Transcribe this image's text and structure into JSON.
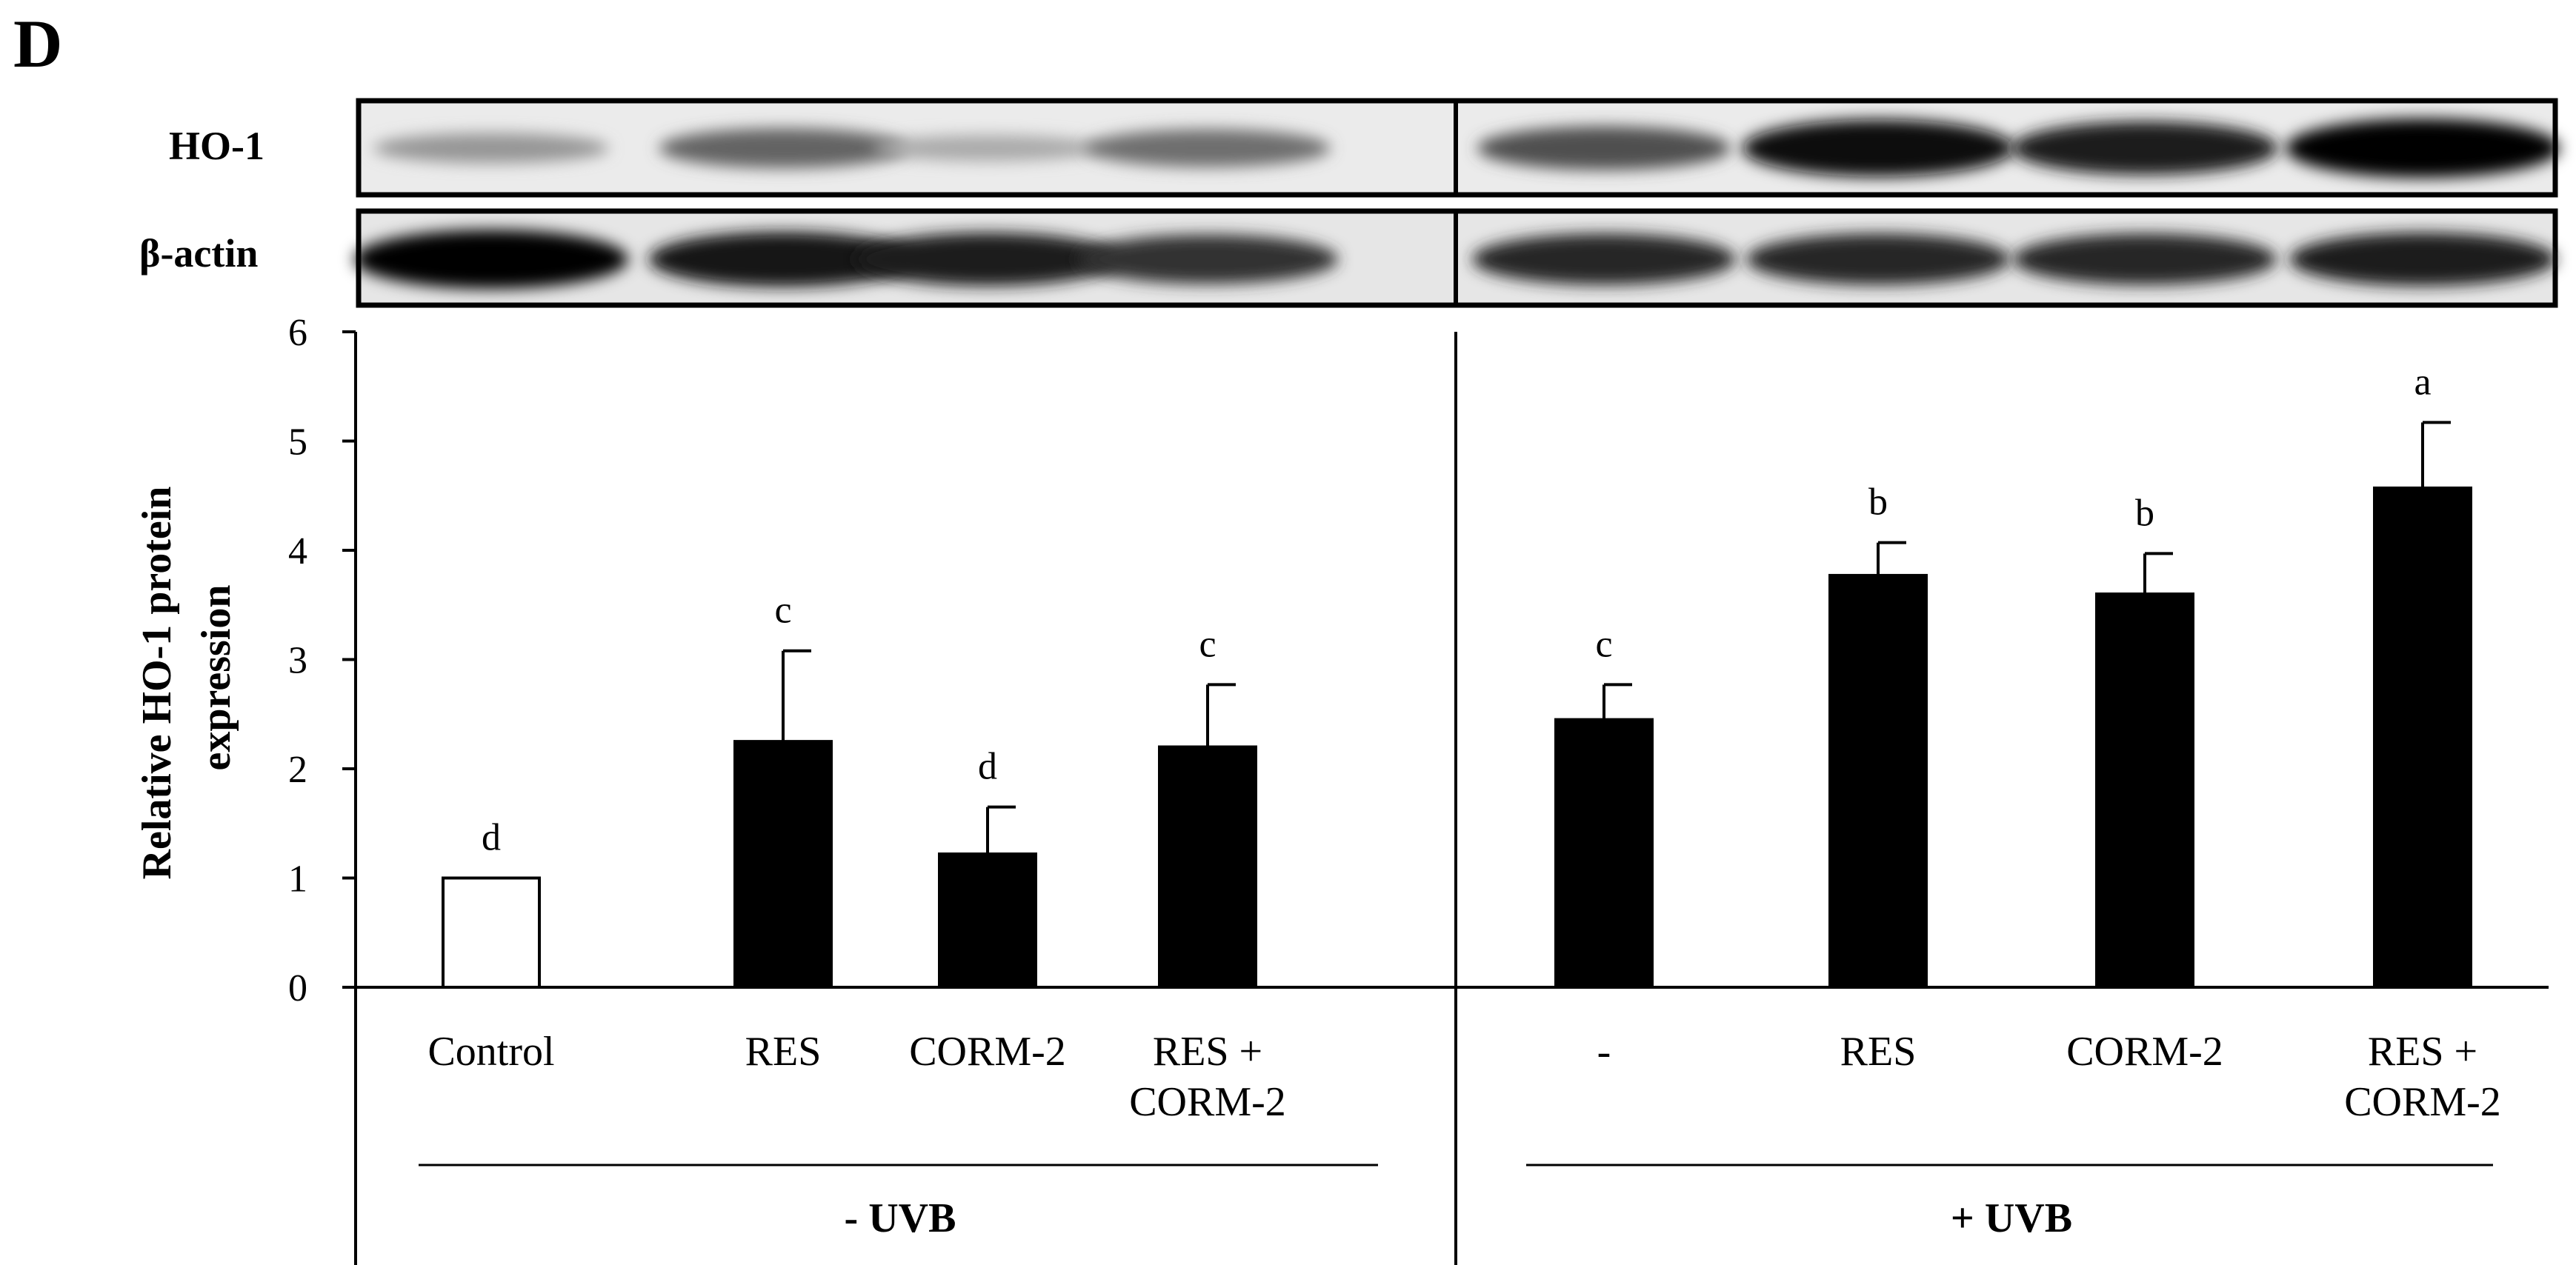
{
  "panel_label": "D",
  "blot": {
    "row_labels": [
      "HO-1",
      "β-actin"
    ],
    "ho1_intensity": [
      0.25,
      0.5,
      0.15,
      0.45,
      0.6,
      0.95,
      0.85,
      1.0
    ],
    "actin_intensity": [
      1.0,
      0.9,
      0.85,
      0.75,
      0.8,
      0.8,
      0.8,
      0.85
    ]
  },
  "chart_data": {
    "type": "bar",
    "ylabel_lines": [
      "Relative HO-1 protein",
      "expression"
    ],
    "ylim": [
      0,
      6
    ],
    "yticks": [
      "0",
      "1",
      "2",
      "3",
      "4",
      "5",
      "6"
    ],
    "categories": [
      [
        "Control"
      ],
      [
        "RES"
      ],
      [
        "CORM-2"
      ],
      [
        "RES +",
        "CORM-2"
      ],
      [
        "-"
      ],
      [
        "RES"
      ],
      [
        "CORM-2"
      ],
      [
        "RES +",
        "CORM-2"
      ]
    ],
    "values": [
      1.0,
      2.25,
      1.22,
      2.2,
      2.45,
      3.77,
      3.6,
      4.57
    ],
    "errors": [
      0.0,
      0.83,
      0.43,
      0.57,
      0.32,
      0.3,
      0.37,
      0.6
    ],
    "significance": [
      "d",
      "c",
      "d",
      "c",
      "c",
      "b",
      "b",
      "a"
    ],
    "bar_fills": [
      "#ffffff",
      "#000000",
      "#000000",
      "#000000",
      "#000000",
      "#000000",
      "#000000",
      "#000000"
    ],
    "groups": [
      "- UVB",
      "+ UVB"
    ]
  }
}
